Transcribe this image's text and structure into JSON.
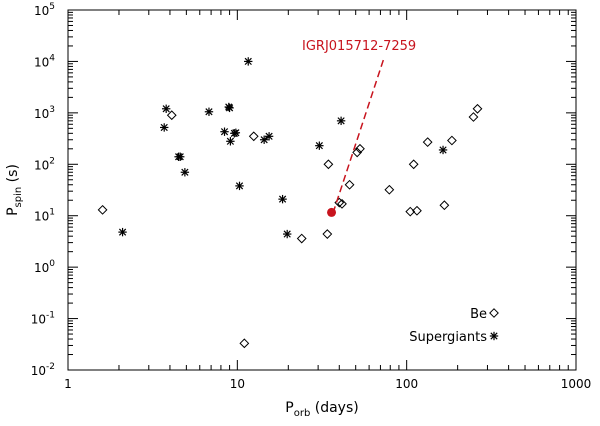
{
  "chart_data": {
    "type": "scatter",
    "xscale": "log",
    "yscale": "log",
    "xlim": [
      1,
      1000
    ],
    "ylim": [
      0.01,
      100000
    ],
    "xlabel": {
      "main": "P",
      "sub": "orb",
      "rest": " (days)"
    },
    "ylabel": {
      "main": "P",
      "sub": "spin",
      "rest": " (s)"
    },
    "xticks": [
      {
        "value": 1,
        "label": "1"
      },
      {
        "value": 10,
        "label": "10"
      },
      {
        "value": 100,
        "label": "100"
      },
      {
        "value": 1000,
        "label": "1000"
      }
    ],
    "yticks": [
      {
        "value": 0.01,
        "base": "10",
        "exp": "-2"
      },
      {
        "value": 0.1,
        "base": "10",
        "exp": "-1"
      },
      {
        "value": 1,
        "base": "10",
        "exp": "0"
      },
      {
        "value": 10,
        "base": "10",
        "exp": "1"
      },
      {
        "value": 100,
        "base": "10",
        "exp": "2"
      },
      {
        "value": 1000,
        "base": "10",
        "exp": "3"
      },
      {
        "value": 10000,
        "base": "10",
        "exp": "4"
      },
      {
        "value": 100000,
        "base": "10",
        "exp": "5"
      }
    ],
    "legend": {
      "position": "bottom-right",
      "entries": [
        {
          "label": "Be",
          "marker": "diamond"
        },
        {
          "label": "Supergiants",
          "marker": "asterisk"
        }
      ]
    },
    "series": [
      {
        "name": "Be",
        "marker": "diamond",
        "points": [
          [
            1.6,
            13
          ],
          [
            4.1,
            900
          ],
          [
            11.0,
            0.033
          ],
          [
            12.5,
            350
          ],
          [
            24.0,
            3.6
          ],
          [
            34.0,
            4.4
          ],
          [
            34.5,
            100
          ],
          [
            40.0,
            18
          ],
          [
            41.5,
            17
          ],
          [
            46.0,
            40
          ],
          [
            51.0,
            170
          ],
          [
            53.0,
            200
          ],
          [
            79.0,
            32
          ],
          [
            105.0,
            12
          ],
          [
            110.0,
            100
          ],
          [
            115.0,
            12.5
          ],
          [
            133.0,
            270
          ],
          [
            167.0,
            16
          ],
          [
            185.0,
            290
          ],
          [
            248.0,
            830
          ],
          [
            262.0,
            1200
          ]
        ]
      },
      {
        "name": "Supergiants",
        "marker": "asterisk",
        "points": [
          [
            2.1,
            4.8
          ],
          [
            3.7,
            520
          ],
          [
            3.8,
            1200
          ],
          [
            4.5,
            140
          ],
          [
            4.6,
            140
          ],
          [
            4.9,
            70
          ],
          [
            6.8,
            1050
          ],
          [
            8.4,
            430
          ],
          [
            8.9,
            1300
          ],
          [
            9.0,
            1250
          ],
          [
            9.1,
            280
          ],
          [
            9.6,
            400
          ],
          [
            9.8,
            410
          ],
          [
            10.3,
            38
          ],
          [
            11.6,
            10000
          ],
          [
            14.4,
            300
          ],
          [
            15.4,
            350
          ],
          [
            18.5,
            21
          ],
          [
            19.7,
            4.4
          ],
          [
            30.5,
            230
          ],
          [
            41.0,
            700
          ],
          [
            164.0,
            190
          ]
        ]
      }
    ],
    "highlight": {
      "label": "IGRJ015712-7259",
      "point": [
        36,
        11.6
      ],
      "color": "#c8141e"
    }
  }
}
